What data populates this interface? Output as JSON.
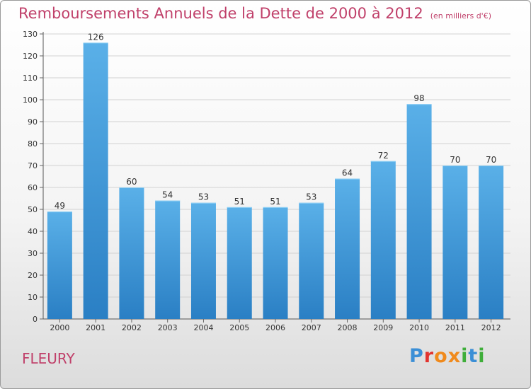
{
  "title": "Remboursements Annuels de la Dette de 2000 à 2012",
  "unit": "(en milliers d'€)",
  "commune": "FLEURY",
  "logo": {
    "letters": [
      "P",
      "r",
      "o",
      "x",
      "i",
      "t",
      "i"
    ],
    "colors": [
      "#3b8fd6",
      "#e2342f",
      "#f08a1c",
      "#f08a1c",
      "#3fae3a",
      "#3b8fd6",
      "#3fae3a"
    ]
  },
  "colors": {
    "title": "#c0406a",
    "bar_top": "#5ab0e8",
    "bar_bottom": "#2a7fc4"
  },
  "chart_data": {
    "type": "bar",
    "title": "Remboursements Annuels de la Dette de 2000 à 2012",
    "categories": [
      "2000",
      "2001",
      "2002",
      "2003",
      "2004",
      "2005",
      "2006",
      "2007",
      "2008",
      "2009",
      "2010",
      "2011",
      "2012"
    ],
    "values": [
      49,
      126,
      60,
      54,
      53,
      51,
      51,
      53,
      64,
      72,
      98,
      70,
      70
    ],
    "ylim": [
      0,
      130
    ],
    "yticks": [
      0,
      10,
      20,
      30,
      40,
      50,
      60,
      70,
      80,
      90,
      100,
      110,
      120,
      130
    ],
    "grid": true,
    "xlabel": "",
    "ylabel": ""
  }
}
